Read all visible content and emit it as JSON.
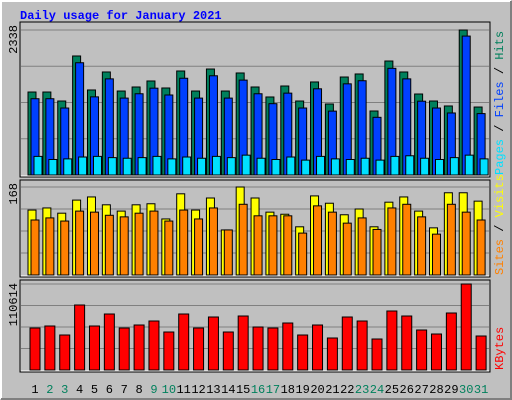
{
  "title": "Daily usage for January 2021",
  "legend_separator": " / ",
  "categories": [
    "1",
    "2",
    "3",
    "4",
    "5",
    "6",
    "7",
    "8",
    "9",
    "10",
    "11",
    "12",
    "13",
    "14",
    "15",
    "16",
    "17",
    "18",
    "19",
    "20",
    "21",
    "22",
    "23",
    "24",
    "25",
    "26",
    "27",
    "28",
    "29",
    "30",
    "31"
  ],
  "category_colors": [
    "#000000",
    "#00805c",
    "#00805c",
    "#000000",
    "#000000",
    "#000000",
    "#000000",
    "#000000",
    "#00805c",
    "#00805c",
    "#000000",
    "#000000",
    "#000000",
    "#000000",
    "#000000",
    "#00805c",
    "#00805c",
    "#000000",
    "#000000",
    "#000000",
    "#000000",
    "#000000",
    "#00805c",
    "#00805c",
    "#000000",
    "#000000",
    "#000000",
    "#000000",
    "#000000",
    "#00805c",
    "#00805c"
  ],
  "chart_data": [
    {
      "type": "bar",
      "ylim": [
        0,
        2338
      ],
      "yticks": [
        2338
      ],
      "series": [
        {
          "name": "Pages",
          "color": "#00e0ff",
          "values": [
            300,
            250,
            260,
            290,
            300,
            280,
            270,
            280,
            300,
            260,
            290,
            270,
            300,
            280,
            320,
            270,
            250,
            290,
            240,
            300,
            260,
            250,
            270,
            240,
            300,
            310,
            270,
            250,
            280,
            320,
            260
          ]
        },
        {
          "name": "Files",
          "color": "#0040ff",
          "values": [
            1230,
            1230,
            1080,
            1810,
            1260,
            1550,
            1240,
            1310,
            1400,
            1290,
            1560,
            1240,
            1600,
            1240,
            1530,
            1310,
            1150,
            1320,
            1080,
            1390,
            1030,
            1470,
            1520,
            930,
            1720,
            1550,
            1190,
            1080,
            1000,
            2240,
            990
          ]
        },
        {
          "name": "Hits",
          "color": "#00805c",
          "values": [
            1338,
            1338,
            1193,
            1919,
            1371,
            1661,
            1354,
            1419,
            1516,
            1403,
            1677,
            1354,
            1709,
            1354,
            1645,
            1419,
            1258,
            1435,
            1193,
            1500,
            1145,
            1580,
            1629,
            1032,
            1838,
            1661,
            1306,
            1193,
            1113,
            2338,
            1096
          ]
        }
      ]
    },
    {
      "type": "bar",
      "ylim": [
        0,
        168
      ],
      "yticks": [
        168
      ],
      "series": [
        {
          "name": "Sites",
          "color": "#ff8000",
          "values": [
            105,
            109,
            103,
            122,
            120,
            114,
            111,
            118,
            122,
            103,
            124,
            107,
            128,
            86,
            135,
            113,
            113,
            113,
            80,
            132,
            120,
            99,
            109,
            87,
            128,
            135,
            111,
            78,
            135,
            120,
            105
          ]
        },
        {
          "name": "Visits",
          "color": "#ffff00",
          "values": [
            124,
            128,
            118,
            143,
            149,
            134,
            122,
            134,
            136,
            107,
            155,
            124,
            147,
            86,
            168,
            147,
            120,
            116,
            92,
            151,
            137,
            115,
            126,
            92,
            139,
            149,
            122,
            90,
            157,
            157,
            141
          ]
        }
      ]
    },
    {
      "type": "bar",
      "ylim": [
        0,
        110614
      ],
      "yticks": [
        110614
      ],
      "series": [
        {
          "name": "KBytes",
          "color": "#ff0000",
          "values": [
            54021,
            56593,
            45018,
            83604,
            56593,
            72028,
            54021,
            57879,
            63025,
            48876,
            72028,
            54021,
            68170,
            48876,
            69456,
            55307,
            54021,
            60452,
            45018,
            57879,
            41159,
            68170,
            63025,
            39873,
            75887,
            69456,
            51449,
            46304,
            73314,
            110614,
            43732
          ]
        }
      ]
    }
  ]
}
